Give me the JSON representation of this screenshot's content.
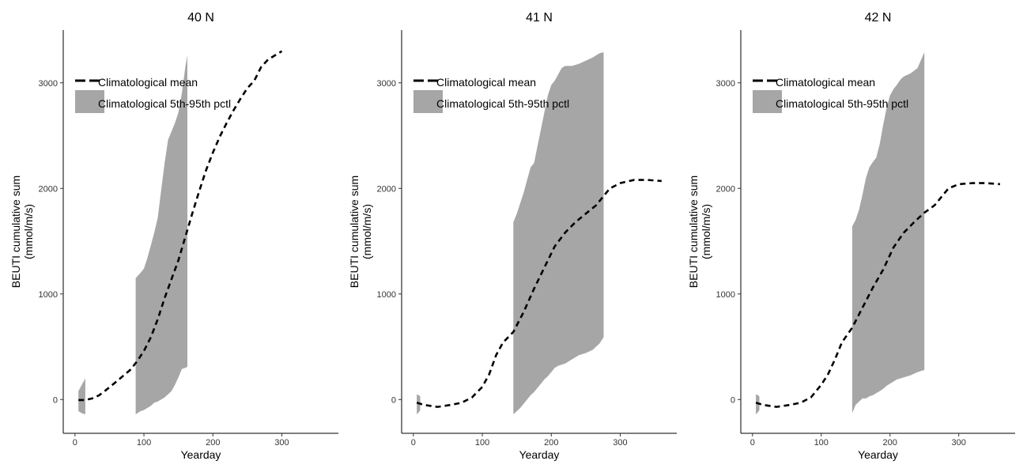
{
  "chart_data": [
    {
      "type": "area",
      "title": "40 N",
      "xlabel": "Yearday",
      "ylabel": [
        "BEUTI cumulative sum",
        "(mmol/m/s)"
      ],
      "xlim": [
        -17,
        382
      ],
      "ylim": [
        -320,
        3500
      ],
      "xticks": [
        0,
        100,
        200,
        300
      ],
      "yticks": [
        0,
        1000,
        2000,
        3000
      ],
      "grid": false,
      "legend": {
        "placement": "top-left",
        "entries": [
          {
            "label": "Climatological mean",
            "kind": "line"
          },
          {
            "label": "Climatological 5th-95th pctl",
            "kind": "fill"
          }
        ]
      },
      "colors": {
        "mean": "#000000",
        "band": "#a6a6a6"
      },
      "series": [
        {
          "name": "Climatological mean",
          "x": [
            5,
            15,
            25,
            35,
            45,
            60,
            80,
            90,
            100,
            110,
            120,
            130,
            140,
            150,
            160,
            170,
            180,
            190,
            200,
            210,
            220,
            230,
            240,
            250,
            260,
            270,
            280,
            290,
            300
          ],
          "y": [
            -5,
            -5,
            10,
            40,
            90,
            170,
            280,
            360,
            460,
            590,
            760,
            960,
            1140,
            1320,
            1540,
            1760,
            1970,
            2170,
            2340,
            2490,
            2620,
            2740,
            2850,
            2950,
            3020,
            3150,
            3220,
            3260,
            3300
          ]
        },
        {
          "name": "Climatological 5th-95th pctl",
          "segments": [
            {
              "x": [
                5,
                10,
                15
              ],
              "upper": [
                80,
                140,
                200
              ],
              "lower": [
                -110,
                -130,
                -140
              ]
            },
            {
              "x": [
                88,
                95,
                100,
                105,
                110,
                115,
                120,
                125,
                130,
                135,
                140,
                145,
                150,
                155,
                160,
                163
              ],
              "upper": [
                1150,
                1200,
                1240,
                1340,
                1460,
                1580,
                1720,
                1980,
                2240,
                2460,
                2540,
                2620,
                2720,
                2900,
                3150,
                3260
              ],
              "lower": [
                -140,
                -110,
                -100,
                -80,
                -60,
                -30,
                -20,
                0,
                20,
                50,
                80,
                140,
                210,
                290,
                300,
                310
              ]
            }
          ]
        }
      ]
    },
    {
      "type": "area",
      "title": "41 N",
      "xlabel": "Yearday",
      "ylabel": [
        "BEUTI cumulative sum",
        "(mmol/m/s)"
      ],
      "xlim": [
        -17,
        382
      ],
      "ylim": [
        -320,
        3500
      ],
      "xticks": [
        0,
        100,
        200,
        300
      ],
      "yticks": [
        0,
        1000,
        2000,
        3000
      ],
      "grid": false,
      "legend": {
        "placement": "top-left",
        "entries": [
          {
            "label": "Climatological mean",
            "kind": "line"
          },
          {
            "label": "Climatological 5th-95th pctl",
            "kind": "fill"
          }
        ]
      },
      "colors": {
        "mean": "#000000",
        "band": "#a6a6a6"
      },
      "series": [
        {
          "name": "Climatological mean",
          "x": [
            5,
            15,
            25,
            35,
            45,
            55,
            70,
            85,
            100,
            110,
            120,
            130,
            145,
            160,
            175,
            190,
            205,
            220,
            235,
            250,
            265,
            275,
            285,
            300,
            320,
            340,
            360
          ],
          "y": [
            -30,
            -50,
            -60,
            -70,
            -60,
            -50,
            -30,
            20,
            120,
            240,
            420,
            540,
            640,
            830,
            1050,
            1250,
            1450,
            1580,
            1680,
            1760,
            1840,
            1920,
            2000,
            2050,
            2080,
            2080,
            2070
          ]
        },
        {
          "name": "Climatological 5th-95th pctl",
          "segments": [
            {
              "x": [
                5,
                8,
                10
              ],
              "upper": [
                50,
                40,
                30
              ],
              "lower": [
                -140,
                -120,
                -100
              ]
            },
            {
              "x": [
                145,
                150,
                155,
                160,
                165,
                170,
                175,
                180,
                185,
                190,
                195,
                200,
                205,
                210,
                215,
                220,
                230,
                240,
                250,
                260,
                270,
                276
              ],
              "upper": [
                1680,
                1760,
                1860,
                1960,
                2080,
                2200,
                2240,
                2400,
                2560,
                2720,
                2880,
                2980,
                3020,
                3080,
                3140,
                3160,
                3160,
                3180,
                3210,
                3240,
                3280,
                3290
              ],
              "lower": [
                -140,
                -110,
                -80,
                -40,
                0,
                40,
                70,
                110,
                150,
                190,
                220,
                260,
                300,
                320,
                330,
                340,
                380,
                420,
                440,
                470,
                530,
                590
              ]
            }
          ]
        }
      ]
    },
    {
      "type": "area",
      "title": "42 N",
      "xlabel": "Yearday",
      "ylabel": [
        "BEUTI cumulative sum",
        "(mmol/m/s)"
      ],
      "xlim": [
        -17,
        382
      ],
      "ylim": [
        -320,
        3500
      ],
      "xticks": [
        0,
        100,
        200,
        300
      ],
      "yticks": [
        0,
        1000,
        2000,
        3000
      ],
      "grid": false,
      "legend": {
        "placement": "top-left",
        "entries": [
          {
            "label": "Climatological mean",
            "kind": "line"
          },
          {
            "label": "Climatological 5th-95th pctl",
            "kind": "fill"
          }
        ]
      },
      "colors": {
        "mean": "#000000",
        "band": "#a6a6a6"
      },
      "series": [
        {
          "name": "Climatological mean",
          "x": [
            5,
            15,
            25,
            35,
            45,
            55,
            70,
            85,
            100,
            110,
            120,
            130,
            145,
            160,
            175,
            190,
            205,
            220,
            235,
            250,
            265,
            275,
            285,
            300,
            320,
            340,
            360
          ],
          "y": [
            -30,
            -50,
            -60,
            -70,
            -60,
            -50,
            -30,
            20,
            140,
            240,
            380,
            540,
            680,
            870,
            1060,
            1230,
            1440,
            1580,
            1680,
            1770,
            1840,
            1920,
            2000,
            2040,
            2050,
            2050,
            2040
          ]
        },
        {
          "name": "Climatological 5th-95th pctl",
          "segments": [
            {
              "x": [
                5,
                8,
                10
              ],
              "upper": [
                50,
                40,
                30
              ],
              "lower": [
                -140,
                -120,
                -100
              ]
            },
            {
              "x": [
                145,
                150,
                155,
                160,
                165,
                170,
                175,
                180,
                185,
                190,
                195,
                200,
                205,
                210,
                215,
                220,
                230,
                240,
                250
              ],
              "upper": [
                1640,
                1700,
                1800,
                1940,
                2100,
                2200,
                2250,
                2290,
                2420,
                2600,
                2760,
                2880,
                2940,
                2980,
                3030,
                3060,
                3090,
                3140,
                3290
              ],
              "lower": [
                -130,
                -50,
                -20,
                10,
                10,
                30,
                40,
                60,
                80,
                100,
                130,
                150,
                170,
                190,
                200,
                210,
                230,
                260,
                280
              ]
            }
          ]
        }
      ]
    }
  ]
}
